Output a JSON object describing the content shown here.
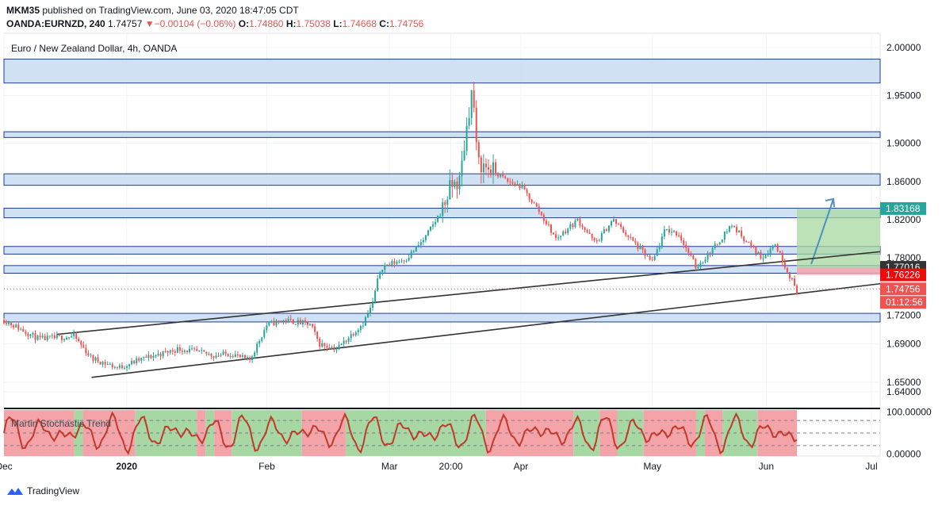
{
  "header": {
    "publisher": "MKM35",
    "published_text": "published on TradingView.com, June 03, 2020 18:47:05 CDT",
    "symbol": "OANDA:EURNZD, 240",
    "last": "1.74757",
    "change": "−0.00104 (−0.06%)",
    "o_label": "O:",
    "o_value": "1.74860",
    "h_label": "H:",
    "h_value": "1.75038",
    "l_label": "L:",
    "l_value": "1.74668",
    "c_label": "C:",
    "c_value": "1.74756"
  },
  "legend_title": "Euro / New Zealand Dollar, 4h, OANDA",
  "indicator_label": "Martin Stochastic Trend",
  "footer": {
    "brand": "TradingView"
  },
  "colors": {
    "up": "#26a69a",
    "down": "#ef5350",
    "zone_fill": "#c9dcf2",
    "zone_border": "#1f3f8f",
    "target_fill": "#a8d8a0",
    "stop_fill": "#f4a6ad",
    "trend": "#333333",
    "osc_line": "#c0392b",
    "osc_red": "#f4a3a8",
    "osc_green": "#a7d7a3",
    "arrow": "#4a90c2"
  },
  "chart_data": {
    "type": "candlestick",
    "symbol": "EURNZD",
    "interval": "4h",
    "ylim": [
      1.625,
      2.015
    ],
    "y_ticks": [
      1.64,
      1.65,
      1.69,
      1.72,
      1.78,
      1.82,
      1.86,
      1.9,
      1.95,
      2.0
    ],
    "x_tick_labels": [
      "Dec",
      "2020",
      "Feb",
      "Mar",
      "20:00",
      "Apr",
      "May",
      "Jun",
      "Jul"
    ],
    "x_tick_pos": [
      0.0,
      0.14,
      0.3,
      0.44,
      0.51,
      0.59,
      0.74,
      0.87,
      0.99
    ],
    "x_domain": [
      0.0,
      1.0
    ],
    "price_path": [
      [
        0.0,
        1.715
      ],
      [
        0.04,
        1.695
      ],
      [
        0.08,
        1.698
      ],
      [
        0.1,
        1.675
      ],
      [
        0.13,
        1.665
      ],
      [
        0.16,
        1.675
      ],
      [
        0.2,
        1.685
      ],
      [
        0.24,
        1.678
      ],
      [
        0.26,
        1.68
      ],
      [
        0.28,
        1.672
      ],
      [
        0.3,
        1.71
      ],
      [
        0.32,
        1.715
      ],
      [
        0.35,
        1.71
      ],
      [
        0.36,
        1.69
      ],
      [
        0.38,
        1.685
      ],
      [
        0.41,
        1.712
      ],
      [
        0.42,
        1.73
      ],
      [
        0.43,
        1.77
      ],
      [
        0.445,
        1.775
      ],
      [
        0.46,
        1.78
      ],
      [
        0.48,
        1.8
      ],
      [
        0.5,
        1.83
      ],
      [
        0.51,
        1.855
      ],
      [
        0.52,
        1.86
      ],
      [
        0.53,
        1.93
      ],
      [
        0.535,
        1.96
      ],
      [
        0.54,
        1.88
      ],
      [
        0.56,
        1.87
      ],
      [
        0.575,
        1.86
      ],
      [
        0.59,
        1.855
      ],
      [
        0.61,
        1.83
      ],
      [
        0.63,
        1.8
      ],
      [
        0.655,
        1.82
      ],
      [
        0.675,
        1.795
      ],
      [
        0.695,
        1.82
      ],
      [
        0.715,
        1.8
      ],
      [
        0.74,
        1.775
      ],
      [
        0.755,
        1.81
      ],
      [
        0.77,
        1.805
      ],
      [
        0.79,
        1.77
      ],
      [
        0.81,
        1.79
      ],
      [
        0.83,
        1.815
      ],
      [
        0.85,
        1.795
      ],
      [
        0.865,
        1.78
      ],
      [
        0.88,
        1.795
      ],
      [
        0.895,
        1.765
      ],
      [
        0.905,
        1.745
      ]
    ],
    "zones": [
      [
        1.963,
        1.988
      ],
      [
        1.906,
        1.912
      ],
      [
        1.856,
        1.868
      ],
      [
        1.822,
        1.832
      ],
      [
        1.784,
        1.792
      ],
      [
        1.764,
        1.772
      ],
      [
        1.713,
        1.722
      ]
    ],
    "trendlines": [
      [
        [
          0.06,
          1.7
        ],
        [
          1.0,
          1.7865
        ]
      ],
      [
        [
          0.1,
          1.655
        ],
        [
          1.0,
          1.753
        ]
      ]
    ],
    "trade": {
      "x_start": 0.905,
      "x_end": 1.0,
      "entry": 1.77016,
      "target": 1.83168,
      "stop": 1.76226
    },
    "price_labels": [
      {
        "value": 1.83168,
        "text": "1.83168",
        "color": "#26a69a"
      },
      {
        "value": 1.77016,
        "text": "1.77016",
        "color": "#333333"
      },
      {
        "value": 1.76226,
        "text": "1.76226",
        "color": "#ef0a0a"
      },
      {
        "value": 1.74756,
        "text": "1.74756",
        "color": "#ef5350"
      },
      {
        "value": 1.7335,
        "text": "01:12:56",
        "color": "#ef5350"
      }
    ],
    "current_price": 1.74756,
    "oscillator": {
      "name": "Martin Stochastic Trend",
      "ylim": [
        -5,
        105
      ],
      "y_ticks": [
        0,
        100
      ],
      "y_tick_labels": [
        "0.00000",
        "100.00000"
      ],
      "bands": [
        [
          "red",
          0.0,
          0.08
        ],
        [
          "green",
          0.08,
          0.09
        ],
        [
          "red",
          0.09,
          0.15
        ],
        [
          "green",
          0.15,
          0.22
        ],
        [
          "red",
          0.22,
          0.23
        ],
        [
          "green",
          0.23,
          0.24
        ],
        [
          "red",
          0.24,
          0.26
        ],
        [
          "green",
          0.26,
          0.34
        ],
        [
          "red",
          0.34,
          0.39
        ],
        [
          "green",
          0.39,
          0.55
        ],
        [
          "red",
          0.55,
          0.65
        ],
        [
          "green",
          0.65,
          0.68
        ],
        [
          "red",
          0.68,
          0.7
        ],
        [
          "green",
          0.7,
          0.73
        ],
        [
          "red",
          0.73,
          0.79
        ],
        [
          "green",
          0.79,
          0.8
        ],
        [
          "red",
          0.8,
          0.82
        ],
        [
          "green",
          0.82,
          0.86
        ],
        [
          "red",
          0.86,
          0.905
        ]
      ]
    }
  }
}
